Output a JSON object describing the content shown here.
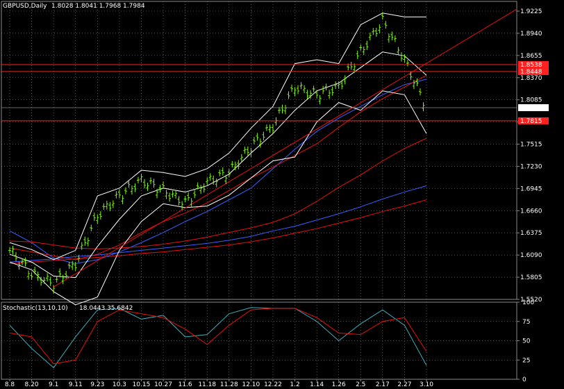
{
  "colors": {
    "background": "#000000",
    "grid": "#8a8a8a",
    "axis_text": "#ffffff",
    "bar": "#7CFC00",
    "bollinger": "#ffffff",
    "ma_blue": "#3a5fff",
    "ma_red": "#e81010",
    "hline": "#ff2020",
    "stoch_main": "#3fb0b8",
    "stoch_signal": "#e81010",
    "current_price_bg": "#ffffff",
    "current_price_text": "#000000"
  },
  "chart_data": [
    {
      "type": "line",
      "title": "GBPUSD,Daily",
      "ohlc_text": "1.8028 1.8041 1.7968 1.7984",
      "current_price": 1.7984,
      "ylim": [
        1.552,
        1.935
      ],
      "y_ticks": [
        "1.9225",
        "1.8940",
        "1.8655",
        "1.8370",
        "1.8085",
        "1.7800",
        "1.7515",
        "1.7230",
        "1.6945",
        "1.6660",
        "1.6375",
        "1.6090",
        "1.5805",
        "1.5520"
      ],
      "x_ticks": [
        "8.8",
        "8.20",
        "9.1",
        "9.11",
        "9.23",
        "10.3",
        "10.15",
        "10.27",
        "11.6",
        "11.18",
        "11.28",
        "12.10",
        "12.22",
        "1.2",
        "1.14",
        "1.26",
        "2.5",
        "2.17",
        "2.27",
        "3.10"
      ],
      "price_labels": [
        "1.8538",
        "1.8448",
        "1.7815"
      ],
      "horizontal_lines": [
        1.8538,
        1.8448,
        1.7815
      ],
      "trendline": {
        "from": [
          "9.1",
          1.568
        ],
        "to": [
          "3.10+",
          1.925
        ]
      },
      "series": [
        {
          "kind": "price",
          "x": [
            "8.8",
            "8.20",
            "9.1",
            "9.11",
            "9.23",
            "10.3",
            "10.15",
            "10.27",
            "11.6",
            "11.18",
            "11.28",
            "12.10",
            "12.22",
            "1.2",
            "1.14",
            "1.26",
            "2.5",
            "2.17",
            "2.27",
            "3.10"
          ],
          "values": [
            1.615,
            1.585,
            1.572,
            1.598,
            1.66,
            1.685,
            1.705,
            1.692,
            1.676,
            1.703,
            1.715,
            1.748,
            1.775,
            1.825,
            1.815,
            1.825,
            1.87,
            1.91,
            1.86,
            1.7984
          ]
        },
        {
          "kind": "ma",
          "x": [
            "8.8",
            "8.20",
            "9.1",
            "9.11",
            "9.23",
            "10.3",
            "10.15",
            "10.27",
            "11.6",
            "11.18",
            "11.28",
            "12.10",
            "12.22",
            "1.2",
            "1.14",
            "1.26",
            "2.5",
            "2.17",
            "2.27",
            "3.10"
          ],
          "values": [
            1.64,
            1.625,
            1.605,
            1.598,
            1.603,
            1.613,
            1.625,
            1.638,
            1.652,
            1.665,
            1.68,
            1.695,
            1.72,
            1.745,
            1.768,
            1.785,
            1.8,
            1.815,
            1.828,
            1.835
          ]
        },
        {
          "kind": "ma",
          "x": [
            "8.8",
            "8.20",
            "9.1",
            "9.11",
            "9.23",
            "10.3",
            "10.15",
            "10.27",
            "11.6",
            "11.18",
            "11.28",
            "12.10",
            "12.22",
            "1.2",
            "1.14",
            "1.26",
            "2.5",
            "2.17",
            "2.27",
            "3.10"
          ],
          "values": [
            1.618,
            1.613,
            1.608,
            1.603,
            1.61,
            1.622,
            1.638,
            1.652,
            1.663,
            1.676,
            1.692,
            1.708,
            1.722,
            1.737,
            1.752,
            1.773,
            1.793,
            1.81,
            1.825,
            1.84
          ]
        },
        {
          "kind": "ma",
          "x": [
            "8.8",
            "8.20",
            "9.1",
            "9.11",
            "9.23",
            "10.3",
            "10.15",
            "10.27",
            "11.6",
            "11.18",
            "11.28",
            "12.10",
            "12.22",
            "1.2",
            "1.14",
            "1.26",
            "2.5",
            "2.17",
            "2.27",
            "3.10"
          ],
          "values": [
            1.627,
            1.626,
            1.622,
            1.618,
            1.617,
            1.618,
            1.62,
            1.623,
            1.627,
            1.632,
            1.638,
            1.644,
            1.651,
            1.662,
            1.678,
            1.696,
            1.712,
            1.73,
            1.746,
            1.759
          ]
        },
        {
          "kind": "ma",
          "x": [
            "8.8",
            "8.20",
            "9.1",
            "9.11",
            "9.23",
            "10.3",
            "10.15",
            "10.27",
            "11.6",
            "11.18",
            "11.28",
            "12.10",
            "12.22",
            "1.2",
            "1.14",
            "1.26",
            "2.5",
            "2.17",
            "2.27",
            "3.10"
          ],
          "values": [
            1.6,
            1.602,
            1.604,
            1.607,
            1.609,
            1.612,
            1.615,
            1.618,
            1.621,
            1.624,
            1.628,
            1.633,
            1.64,
            1.646,
            1.654,
            1.662,
            1.671,
            1.681,
            1.69,
            1.698
          ]
        },
        {
          "kind": "ma",
          "x": [
            "8.8",
            "8.20",
            "9.1",
            "9.11",
            "9.23",
            "10.3",
            "10.15",
            "10.27",
            "11.6",
            "11.18",
            "11.28",
            "12.10",
            "12.22",
            "1.2",
            "1.14",
            "1.26",
            "2.5",
            "2.17",
            "2.27",
            "3.10"
          ],
          "values": [
            1.598,
            1.6,
            1.602,
            1.604,
            1.606,
            1.608,
            1.611,
            1.613,
            1.616,
            1.619,
            1.622,
            1.626,
            1.631,
            1.637,
            1.643,
            1.65,
            1.657,
            1.665,
            1.672,
            1.68
          ]
        },
        {
          "kind": "bb-upper",
          "x": [
            "8.8",
            "8.20",
            "9.1",
            "9.11",
            "9.23",
            "10.3",
            "10.15",
            "10.27",
            "11.6",
            "11.18",
            "11.28",
            "12.10",
            "12.22",
            "1.2",
            "1.14",
            "1.26",
            "2.5",
            "2.17",
            "2.27",
            "3.10"
          ],
          "values": [
            1.625,
            1.616,
            1.603,
            1.615,
            1.685,
            1.695,
            1.718,
            1.715,
            1.71,
            1.72,
            1.74,
            1.772,
            1.8,
            1.855,
            1.86,
            1.855,
            1.905,
            1.92,
            1.915,
            1.915
          ]
        },
        {
          "kind": "bb-middle",
          "x": [
            "8.8",
            "8.20",
            "9.1",
            "9.11",
            "9.23",
            "10.3",
            "10.15",
            "10.27",
            "11.6",
            "11.18",
            "11.28",
            "12.10",
            "12.22",
            "1.2",
            "1.14",
            "1.26",
            "2.5",
            "2.17",
            "2.27",
            "3.10"
          ],
          "values": [
            1.61,
            1.6,
            1.582,
            1.58,
            1.62,
            1.655,
            1.685,
            1.695,
            1.69,
            1.698,
            1.713,
            1.74,
            1.765,
            1.795,
            1.82,
            1.83,
            1.85,
            1.87,
            1.865,
            1.84
          ]
        },
        {
          "kind": "bb-lower",
          "x": [
            "8.8",
            "8.20",
            "9.1",
            "9.11",
            "9.23",
            "10.3",
            "10.15",
            "10.27",
            "11.6",
            "11.18",
            "11.28",
            "12.10",
            "12.22",
            "1.2",
            "1.14",
            "1.26",
            "2.5",
            "2.17",
            "2.27",
            "3.10"
          ],
          "values": [
            1.6,
            1.59,
            1.562,
            1.545,
            1.555,
            1.615,
            1.652,
            1.675,
            1.67,
            1.672,
            1.686,
            1.708,
            1.73,
            1.735,
            1.78,
            1.805,
            1.795,
            1.82,
            1.815,
            1.765
          ]
        }
      ]
    },
    {
      "type": "line",
      "title": "Stochastic(13,10,10)",
      "values_text": "18.0443  35.6842",
      "ylim": [
        0,
        100
      ],
      "y_ticks": [
        "100",
        "75",
        "50",
        "25",
        "0"
      ],
      "series": [
        {
          "kind": "main",
          "x": [
            "8.8",
            "8.20",
            "9.1",
            "9.11",
            "9.23",
            "10.3",
            "10.15",
            "10.27",
            "11.6",
            "11.18",
            "11.28",
            "12.10",
            "12.22",
            "1.2",
            "1.14",
            "1.26",
            "2.5",
            "2.17",
            "2.27",
            "3.10"
          ],
          "values": [
            70,
            40,
            15,
            55,
            90,
            92,
            78,
            83,
            55,
            58,
            85,
            93,
            92,
            92,
            75,
            50,
            72,
            90,
            70,
            18
          ]
        },
        {
          "kind": "signal",
          "x": [
            "8.8",
            "8.20",
            "9.1",
            "9.11",
            "9.23",
            "10.3",
            "10.15",
            "10.27",
            "11.6",
            "11.18",
            "11.28",
            "12.10",
            "12.22",
            "1.2",
            "1.14",
            "1.26",
            "2.5",
            "2.17",
            "2.27",
            "3.10"
          ],
          "values": [
            60,
            55,
            20,
            25,
            75,
            90,
            85,
            80,
            65,
            45,
            70,
            90,
            92,
            92,
            80,
            60,
            58,
            75,
            80,
            36
          ]
        }
      ]
    }
  ]
}
